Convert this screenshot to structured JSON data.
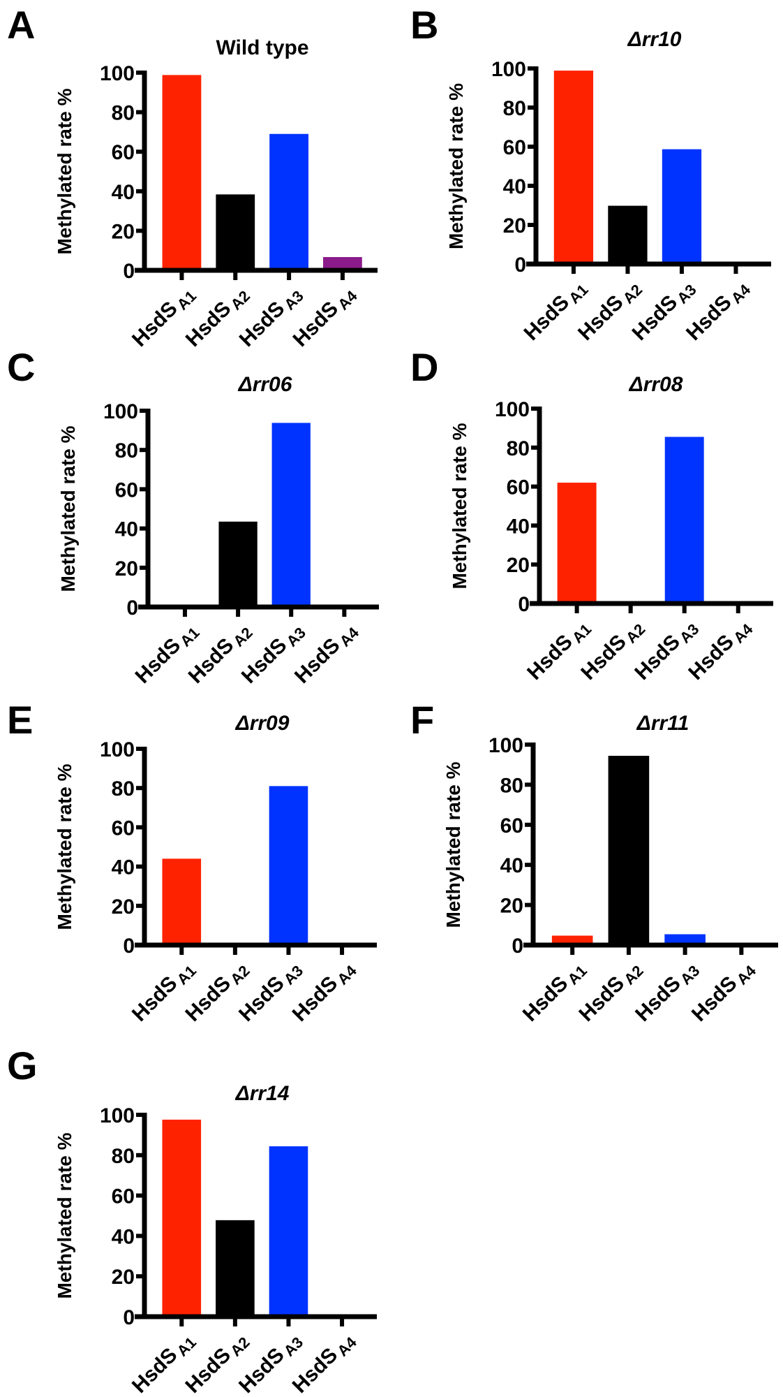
{
  "colors": {
    "A1": "#ff2200",
    "A2": "#000000",
    "A3": "#0033ff",
    "A4": "#8b1a8b"
  },
  "chart_data": [
    {
      "type": "bar",
      "panel": "A",
      "title": "Wild type",
      "title_italic": false,
      "ylabel": "Methylated rate %",
      "ylim": [
        0,
        100
      ],
      "yticks": [
        "0",
        "20",
        "40",
        "60",
        "80",
        "100"
      ],
      "categories": [
        {
          "main": "HsdS",
          "sub": "A1"
        },
        {
          "main": "HsdS",
          "sub": "A2"
        },
        {
          "main": "HsdS",
          "sub": "A3"
        },
        {
          "main": "HsdS",
          "sub": "A4"
        }
      ],
      "values": [
        98.8,
        38.4,
        69,
        6.7
      ]
    },
    {
      "type": "bar",
      "panel": "B",
      "title": "Δrr10",
      "title_italic": true,
      "ylabel": "Methylated rate %",
      "ylim": [
        0,
        100
      ],
      "yticks": [
        "0",
        "20",
        "40",
        "60",
        "80",
        "100"
      ],
      "categories": [
        {
          "main": "HsdS",
          "sub": "A1"
        },
        {
          "main": "HsdS",
          "sub": "A2"
        },
        {
          "main": "HsdS",
          "sub": "A3"
        },
        {
          "main": "HsdS",
          "sub": "A4"
        }
      ],
      "values": [
        98.9,
        29.8,
        58.7,
        0
      ]
    },
    {
      "type": "bar",
      "panel": "C",
      "title": "Δrr06",
      "title_italic": true,
      "ylabel": "Methylated rate %",
      "ylim": [
        0,
        100
      ],
      "yticks": [
        "0",
        "20",
        "40",
        "60",
        "80",
        "100"
      ],
      "categories": [
        {
          "main": "HsdS",
          "sub": "A1"
        },
        {
          "main": "HsdS",
          "sub": "A2"
        },
        {
          "main": "HsdS",
          "sub": "A3"
        },
        {
          "main": "HsdS",
          "sub": "A4"
        }
      ],
      "values": [
        0,
        43.5,
        93.8,
        0
      ]
    },
    {
      "type": "bar",
      "panel": "D",
      "title": "Δrr08",
      "title_italic": true,
      "ylabel": "Methylated rate %",
      "ylim": [
        0,
        100
      ],
      "yticks": [
        "0",
        "20",
        "40",
        "60",
        "80",
        "100"
      ],
      "categories": [
        {
          "main": "HsdS",
          "sub": "A1"
        },
        {
          "main": "HsdS",
          "sub": "A2"
        },
        {
          "main": "HsdS",
          "sub": "A3"
        },
        {
          "main": "HsdS",
          "sub": "A4"
        }
      ],
      "values": [
        62,
        0,
        85.5,
        0
      ]
    },
    {
      "type": "bar",
      "panel": "E",
      "title": "Δrr09",
      "title_italic": true,
      "ylabel": "Methylated rate %",
      "ylim": [
        0,
        100
      ],
      "yticks": [
        "0",
        "20",
        "40",
        "60",
        "80",
        "100"
      ],
      "categories": [
        {
          "main": "HsdS",
          "sub": "A1"
        },
        {
          "main": "HsdS",
          "sub": "A2"
        },
        {
          "main": "HsdS",
          "sub": "A3"
        },
        {
          "main": "HsdS",
          "sub": "A4"
        }
      ],
      "values": [
        44,
        0,
        81,
        0
      ]
    },
    {
      "type": "bar",
      "panel": "F",
      "title": "Δrr11",
      "title_italic": true,
      "ylabel": "Methylated rate %",
      "ylim": [
        0,
        100
      ],
      "yticks": [
        "0",
        "20",
        "40",
        "60",
        "80",
        "100"
      ],
      "categories": [
        {
          "main": "HsdS",
          "sub": "A1"
        },
        {
          "main": "HsdS",
          "sub": "A2"
        },
        {
          "main": "HsdS",
          "sub": "A3"
        },
        {
          "main": "HsdS",
          "sub": "A4"
        }
      ],
      "values": [
        4.7,
        94.4,
        5.4,
        0
      ]
    },
    {
      "type": "bar",
      "panel": "G",
      "title": "Δrr14",
      "title_italic": true,
      "ylabel": "Methylated rate %",
      "ylim": [
        0,
        100
      ],
      "yticks": [
        "0",
        "20",
        "40",
        "60",
        "80",
        "100"
      ],
      "categories": [
        {
          "main": "HsdS",
          "sub": "A1"
        },
        {
          "main": "HsdS",
          "sub": "A2"
        },
        {
          "main": "HsdS",
          "sub": "A3"
        },
        {
          "main": "HsdS",
          "sub": "A4"
        }
      ],
      "values": [
        97.6,
        47.8,
        84.4,
        0
      ]
    }
  ]
}
